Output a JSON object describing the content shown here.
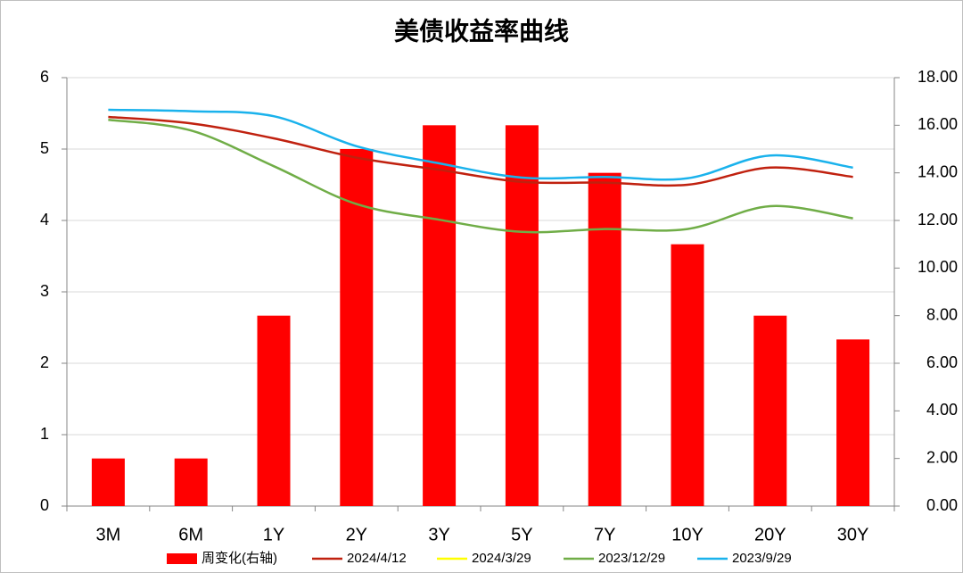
{
  "chart_data": {
    "type": "bar",
    "title": "美债收益率曲线",
    "categories": [
      "3M",
      "6M",
      "1Y",
      "2Y",
      "3Y",
      "5Y",
      "7Y",
      "10Y",
      "20Y",
      "30Y"
    ],
    "series": [
      {
        "name": "周变化(右轴)",
        "type": "bar",
        "axis": "y2",
        "color": "#ff0000",
        "values": [
          2,
          2,
          8,
          15,
          16,
          16,
          14,
          11,
          8,
          7
        ]
      },
      {
        "name": "2024/4/12",
        "type": "line",
        "color": "#c0210f",
        "values": [
          5.45,
          5.36,
          5.15,
          4.88,
          4.71,
          4.54,
          4.53,
          4.5,
          4.74,
          4.61
        ]
      },
      {
        "name": "2024/3/29",
        "type": "line",
        "color": "#ffff00",
        "values": [
          null,
          null,
          null,
          null,
          null,
          null,
          null,
          null,
          null,
          null
        ]
      },
      {
        "name": "2023/12/29",
        "type": "line",
        "color": "#70ad47",
        "values": [
          5.41,
          5.26,
          4.76,
          4.23,
          4.01,
          3.84,
          3.88,
          3.88,
          4.2,
          4.03
        ]
      },
      {
        "name": "2023/9/29",
        "type": "line",
        "color": "#1ab2ec",
        "values": [
          5.55,
          5.53,
          5.46,
          5.04,
          4.8,
          4.6,
          4.61,
          4.59,
          4.91,
          4.74
        ]
      }
    ],
    "ylim": [
      0,
      6
    ],
    "yticks": [
      0,
      1,
      2,
      3,
      4,
      5,
      6
    ],
    "y2lim": [
      0,
      18
    ],
    "y2ticks": [
      {
        "value": 0,
        "label": "0.00"
      },
      {
        "value": 2,
        "label": "2.00"
      },
      {
        "value": 4,
        "label": "4.00"
      },
      {
        "value": 6,
        "label": "6.00"
      },
      {
        "value": 8,
        "label": "8.00"
      },
      {
        "value": 10,
        "label": "10.00"
      },
      {
        "value": 12,
        "label": "12.00"
      },
      {
        "value": 14,
        "label": "14.00"
      },
      {
        "value": 16,
        "label": "16.00"
      },
      {
        "value": 18,
        "label": "18.00"
      }
    ],
    "grid": true,
    "legend": "bottom"
  }
}
